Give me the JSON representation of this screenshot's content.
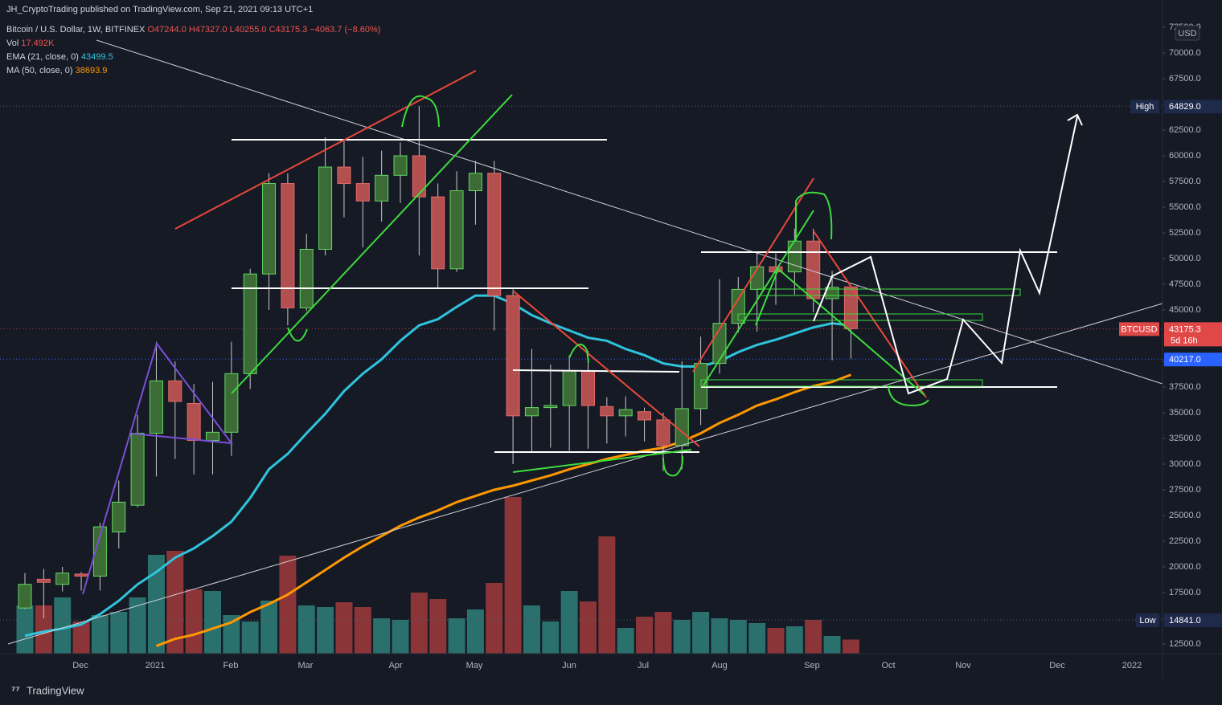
{
  "header": {
    "publisher": "JH_CryptoTrading published on TradingView.com, Sep 21, 2021 09:13 UTC+1",
    "symbol": "Bitcoin / U.S. Dollar, 1W, BITFINEX",
    "ohlc": [
      "O47244.0",
      "H47327.0",
      "L40255.0",
      "C43175.3",
      "−4063.7 (−8.60%)"
    ],
    "indicators": [
      {
        "name": "Vol",
        "value": "17.492K"
      },
      {
        "name": "EMA (21, close, 0)",
        "value": "43499.5"
      },
      {
        "name": "MA (50, close, 0)",
        "value": "38693.9"
      }
    ]
  },
  "footer": "TradingView",
  "chart_data": {
    "type": "candlestick",
    "currency": "USD",
    "up_color": "#3d6b36",
    "up_border": "#62d862",
    "down_color": "#b34f4f",
    "down_border": "#e46a6a",
    "wick_color": "#c8c8c8",
    "open": [
      16000,
      18800,
      18300,
      19300,
      19100,
      23400,
      26000,
      33000,
      38100,
      35900,
      32300,
      33100,
      38800,
      48500,
      57300,
      45200,
      50900,
      58900,
      57300,
      55600,
      58100,
      60000,
      56000,
      49000,
      56600,
      58300,
      46400,
      34700,
      35500,
      35700,
      39100,
      35600,
      34700,
      35100,
      34300,
      31800,
      35400,
      39800,
      43700,
      47000,
      49200,
      48700,
      51700,
      46100,
      47244
    ],
    "high": [
      19400,
      19800,
      20000,
      19500,
      24300,
      28400,
      34800,
      41900,
      40000,
      37800,
      38000,
      41900,
      49000,
      58300,
      58300,
      52400,
      61800,
      61500,
      59900,
      60500,
      61300,
      64829,
      57300,
      58500,
      59500,
      59500,
      47000,
      41200,
      39700,
      40600,
      41000,
      36500,
      36600,
      35500,
      35000,
      40000,
      42400,
      48000,
      48200,
      50500,
      50500,
      52900,
      52900,
      48800,
      47327
    ],
    "low": [
      15900,
      15000,
      17600,
      17700,
      17700,
      21800,
      25800,
      28800,
      30500,
      29000,
      29000,
      30800,
      37300,
      45000,
      43500,
      44900,
      50300,
      54000,
      51100,
      53600,
      55400,
      50300,
      47100,
      48700,
      53300,
      43000,
      30000,
      31200,
      31600,
      31300,
      31500,
      32000,
      32700,
      32200,
      29300,
      29500,
      33800,
      38800,
      42800,
      42900,
      45500,
      46500,
      44800,
      40100,
      40255
    ],
    "close": [
      18300,
      18500,
      19400,
      19100,
      23900,
      26300,
      33000,
      38100,
      36100,
      32300,
      33100,
      38800,
      48500,
      57300,
      45200,
      50900,
      58900,
      57300,
      55600,
      58100,
      60000,
      56000,
      49000,
      56600,
      58300,
      46400,
      34700,
      35500,
      35700,
      39100,
      35700,
      34700,
      35300,
      34300,
      31800,
      35400,
      39800,
      43700,
      47000,
      49200,
      48700,
      51700,
      46100,
      47200,
      43175.3
    ],
    "volume": {
      "up_color": "#2a706c",
      "down_color": "#8c3538",
      "values": [
        60,
        60,
        70,
        40,
        48,
        52,
        70,
        123,
        128,
        80,
        78,
        48,
        40,
        66,
        122,
        60,
        58,
        64,
        58,
        44,
        42,
        76,
        68,
        44,
        55,
        88,
        195,
        60,
        40,
        78,
        65,
        146,
        32,
        46,
        52,
        42,
        52,
        44,
        42,
        38,
        32,
        34,
        42,
        22,
        17.492
      ]
    },
    "series": [
      {
        "name": "EMA (21, close, 0)",
        "color": "#2fc4dd",
        "values": [
          13300,
          13700,
          14000,
          14400,
          15400,
          16700,
          18300,
          19500,
          20900,
          21800,
          23000,
          24400,
          26700,
          29500,
          31000,
          33000,
          34900,
          37100,
          38800,
          40200,
          42000,
          43500,
          44100,
          45300,
          46400,
          46400,
          45600,
          44500,
          43700,
          43000,
          42300,
          42000,
          41200,
          40600,
          39800,
          39500,
          39500,
          40000,
          40900,
          41600,
          42100,
          42700,
          43300,
          43700,
          43499.5
        ]
      },
      {
        "name": "MA (50, close, 0)",
        "color": "#ff9800",
        "values": [
          null,
          null,
          null,
          null,
          null,
          null,
          null,
          12300,
          13000,
          13400,
          14000,
          14600,
          15600,
          16400,
          17300,
          18500,
          19700,
          20900,
          22000,
          23000,
          24000,
          24800,
          25500,
          26300,
          26900,
          27500,
          27900,
          28400,
          28900,
          29500,
          30000,
          30500,
          30900,
          31300,
          31600,
          32200,
          33000,
          34000,
          34800,
          35700,
          36300,
          37000,
          37600,
          38000,
          38693.9
        ]
      }
    ],
    "ylim": [
      11562.5,
      75156.25
    ],
    "yticks": [
      {
        "value": 12500,
        "label": "12500.0"
      },
      {
        "value": 15000,
        "label": "15000.0"
      },
      {
        "value": 17500,
        "label": "17500.0"
      },
      {
        "value": 20000,
        "label": "20000.0"
      },
      {
        "value": 22500,
        "label": "22500.0"
      },
      {
        "value": 25000,
        "label": "25000.0"
      },
      {
        "value": 27500,
        "label": "27500.0"
      },
      {
        "value": 30000,
        "label": "30000.0"
      },
      {
        "value": 32500,
        "label": "32500.0"
      },
      {
        "value": 35000,
        "label": "35000.0"
      },
      {
        "value": 37500,
        "label": "37500.0"
      },
      {
        "value": 40000,
        "label": "40000.0"
      },
      {
        "value": 42500,
        "label": "42500.0"
      },
      {
        "value": 45000,
        "label": "45000.0"
      },
      {
        "value": 47500,
        "label": "47500.0"
      },
      {
        "value": 50000,
        "label": "50000.0"
      },
      {
        "value": 52500,
        "label": "52500.0"
      },
      {
        "value": 55000,
        "label": "55000.0"
      },
      {
        "value": 57500,
        "label": "57500.0"
      },
      {
        "value": 60000,
        "label": "60000.0"
      },
      {
        "value": 62500,
        "label": "62500.0"
      },
      {
        "value": 65000,
        "label": "65000.0"
      },
      {
        "value": 67500,
        "label": "67500.0"
      },
      {
        "value": 70000,
        "label": "70000.0"
      },
      {
        "value": 72500,
        "label": "72500.0"
      }
    ],
    "x_axis_labels": [
      "Dec",
      "2021",
      "Feb",
      "Mar",
      "Apr",
      "May",
      "Jun",
      "Jul",
      "Aug",
      "Sep",
      "Oct",
      "Nov",
      "Dec",
      "2022"
    ],
    "price_labels": [
      {
        "name": "High",
        "value": 64829,
        "value_label": "64829.0",
        "color": "#1e2a4a",
        "line": "#555a66"
      },
      {
        "name": "BTCUSD",
        "value": 43175.3,
        "sublabel": "5d 16h",
        "color": "#e04848",
        "line": "#b04040"
      },
      {
        "value": 40217,
        "value_label": "40217.0",
        "color": "#2962ff",
        "line": "#2962ff"
      },
      {
        "name": "Low",
        "value": 14841,
        "value_label": "14841.0",
        "color": "#1e2a4a",
        "line": "#555a66"
      }
    ]
  }
}
